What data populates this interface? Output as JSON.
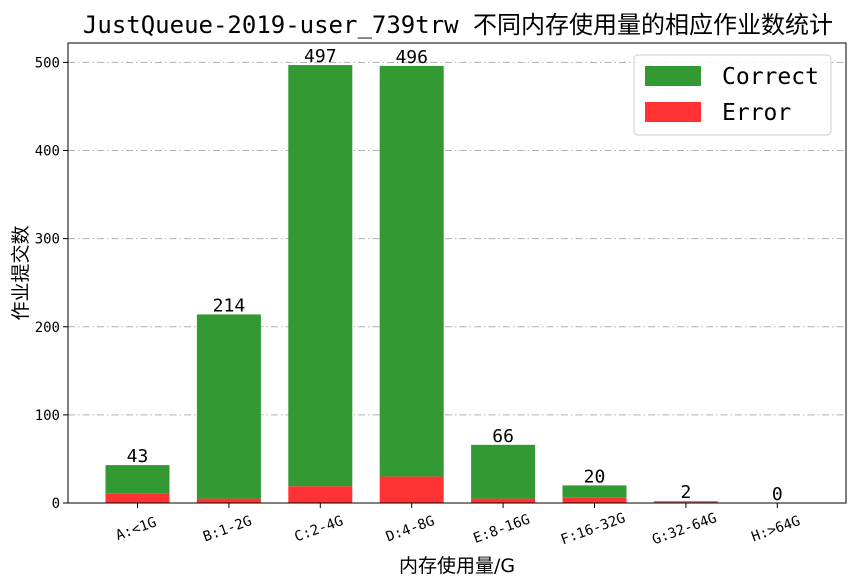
{
  "chart_data": {
    "type": "bar",
    "stacked": true,
    "title": "JustQueue-2019-user_739trw 不同内存使用量的相应作业数统计",
    "xlabel": "内存使用量/G",
    "ylabel": "作业提交数",
    "categories": [
      "A:<1G",
      "B:1-2G",
      "C:2-4G",
      "D:4-8G",
      "E:8-16G",
      "F:16-32G",
      "G:32-64G",
      "H:>64G"
    ],
    "series": [
      {
        "name": "Correct",
        "color": "#339933",
        "values": [
          32,
          209,
          478,
          466,
          61,
          14,
          1,
          0
        ]
      },
      {
        "name": "Error",
        "color": "#ff3333",
        "values": [
          11,
          5,
          19,
          30,
          5,
          6,
          1,
          0
        ]
      }
    ],
    "totals": [
      43,
      214,
      497,
      496,
      66,
      20,
      2,
      0
    ],
    "yticks": [
      0,
      100,
      200,
      300,
      400,
      500
    ],
    "ylim": [
      0,
      522
    ],
    "grid": "y",
    "legend_position": "top-right"
  }
}
